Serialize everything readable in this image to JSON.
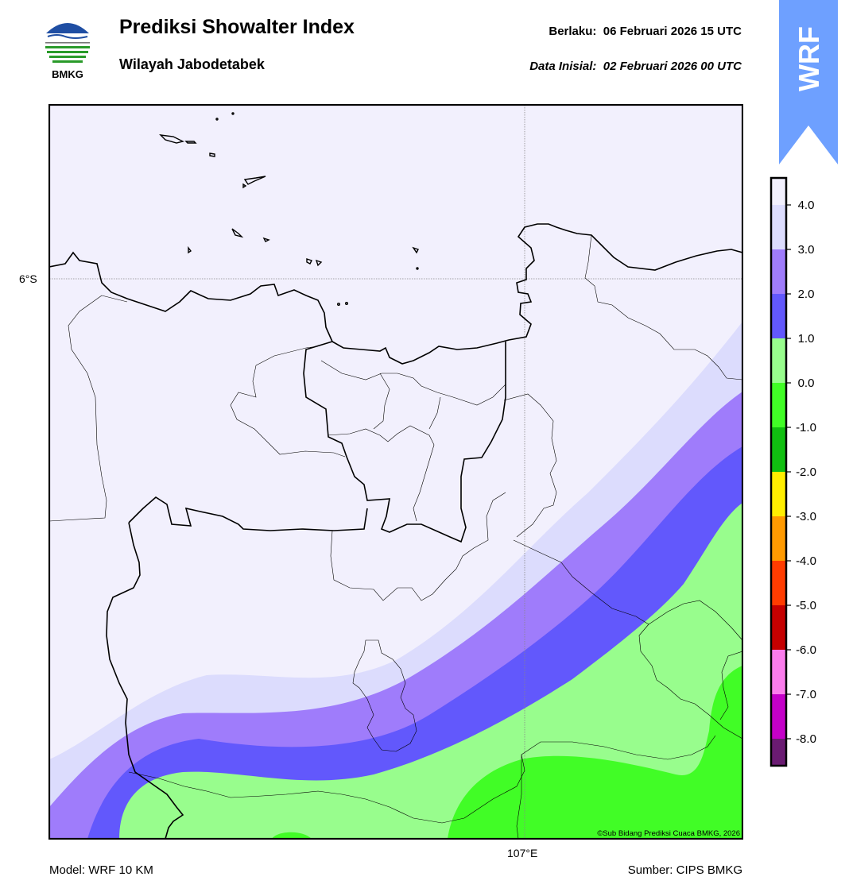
{
  "header": {
    "logo_text": "BMKG",
    "title": "Prediksi Showalter Index",
    "subtitle": "Wilayah Jabodetabek",
    "valid_label": "Berlaku:",
    "valid_time": "06 Februari 2026 15 UTC",
    "init_label": "Data Inisial:",
    "init_time": "02 Februari 2026 00 UTC",
    "model_badge": "WRF"
  },
  "map": {
    "lat_label": "6°S",
    "lon_label": "107°E",
    "credit": "©Sub Bidang Prediksi Cuaca BMKG, 2026",
    "field_colors": {
      "above_4": "#f2f0fd",
      "3_to_4": "#dcdcfd",
      "2_to_3": "#9f7cfb",
      "1_to_2": "#6258fc",
      "0_to_1": "#98fd8d",
      "-1_to_0": "#41fd26"
    }
  },
  "colorbar": {
    "ticks": [
      "4.0",
      "3.0",
      "2.0",
      "1.0",
      "0.0",
      "-1.0",
      "-2.0",
      "-3.0",
      "-4.0",
      "-5.0",
      "-6.0",
      "-7.0",
      "-8.0"
    ],
    "colors": [
      "#f2f0fd",
      "#dcdcfd",
      "#9f7cfb",
      "#6258fc",
      "#98fd8d",
      "#41fd26",
      "#10bf10",
      "#ffee00",
      "#ff9a00",
      "#ff3c00",
      "#c50000",
      "#fb7cec",
      "#c400c8",
      "#6a1b72"
    ]
  },
  "footer": {
    "model": "Model: WRF 10 KM",
    "source": "Sumber: CIPS BMKG"
  }
}
